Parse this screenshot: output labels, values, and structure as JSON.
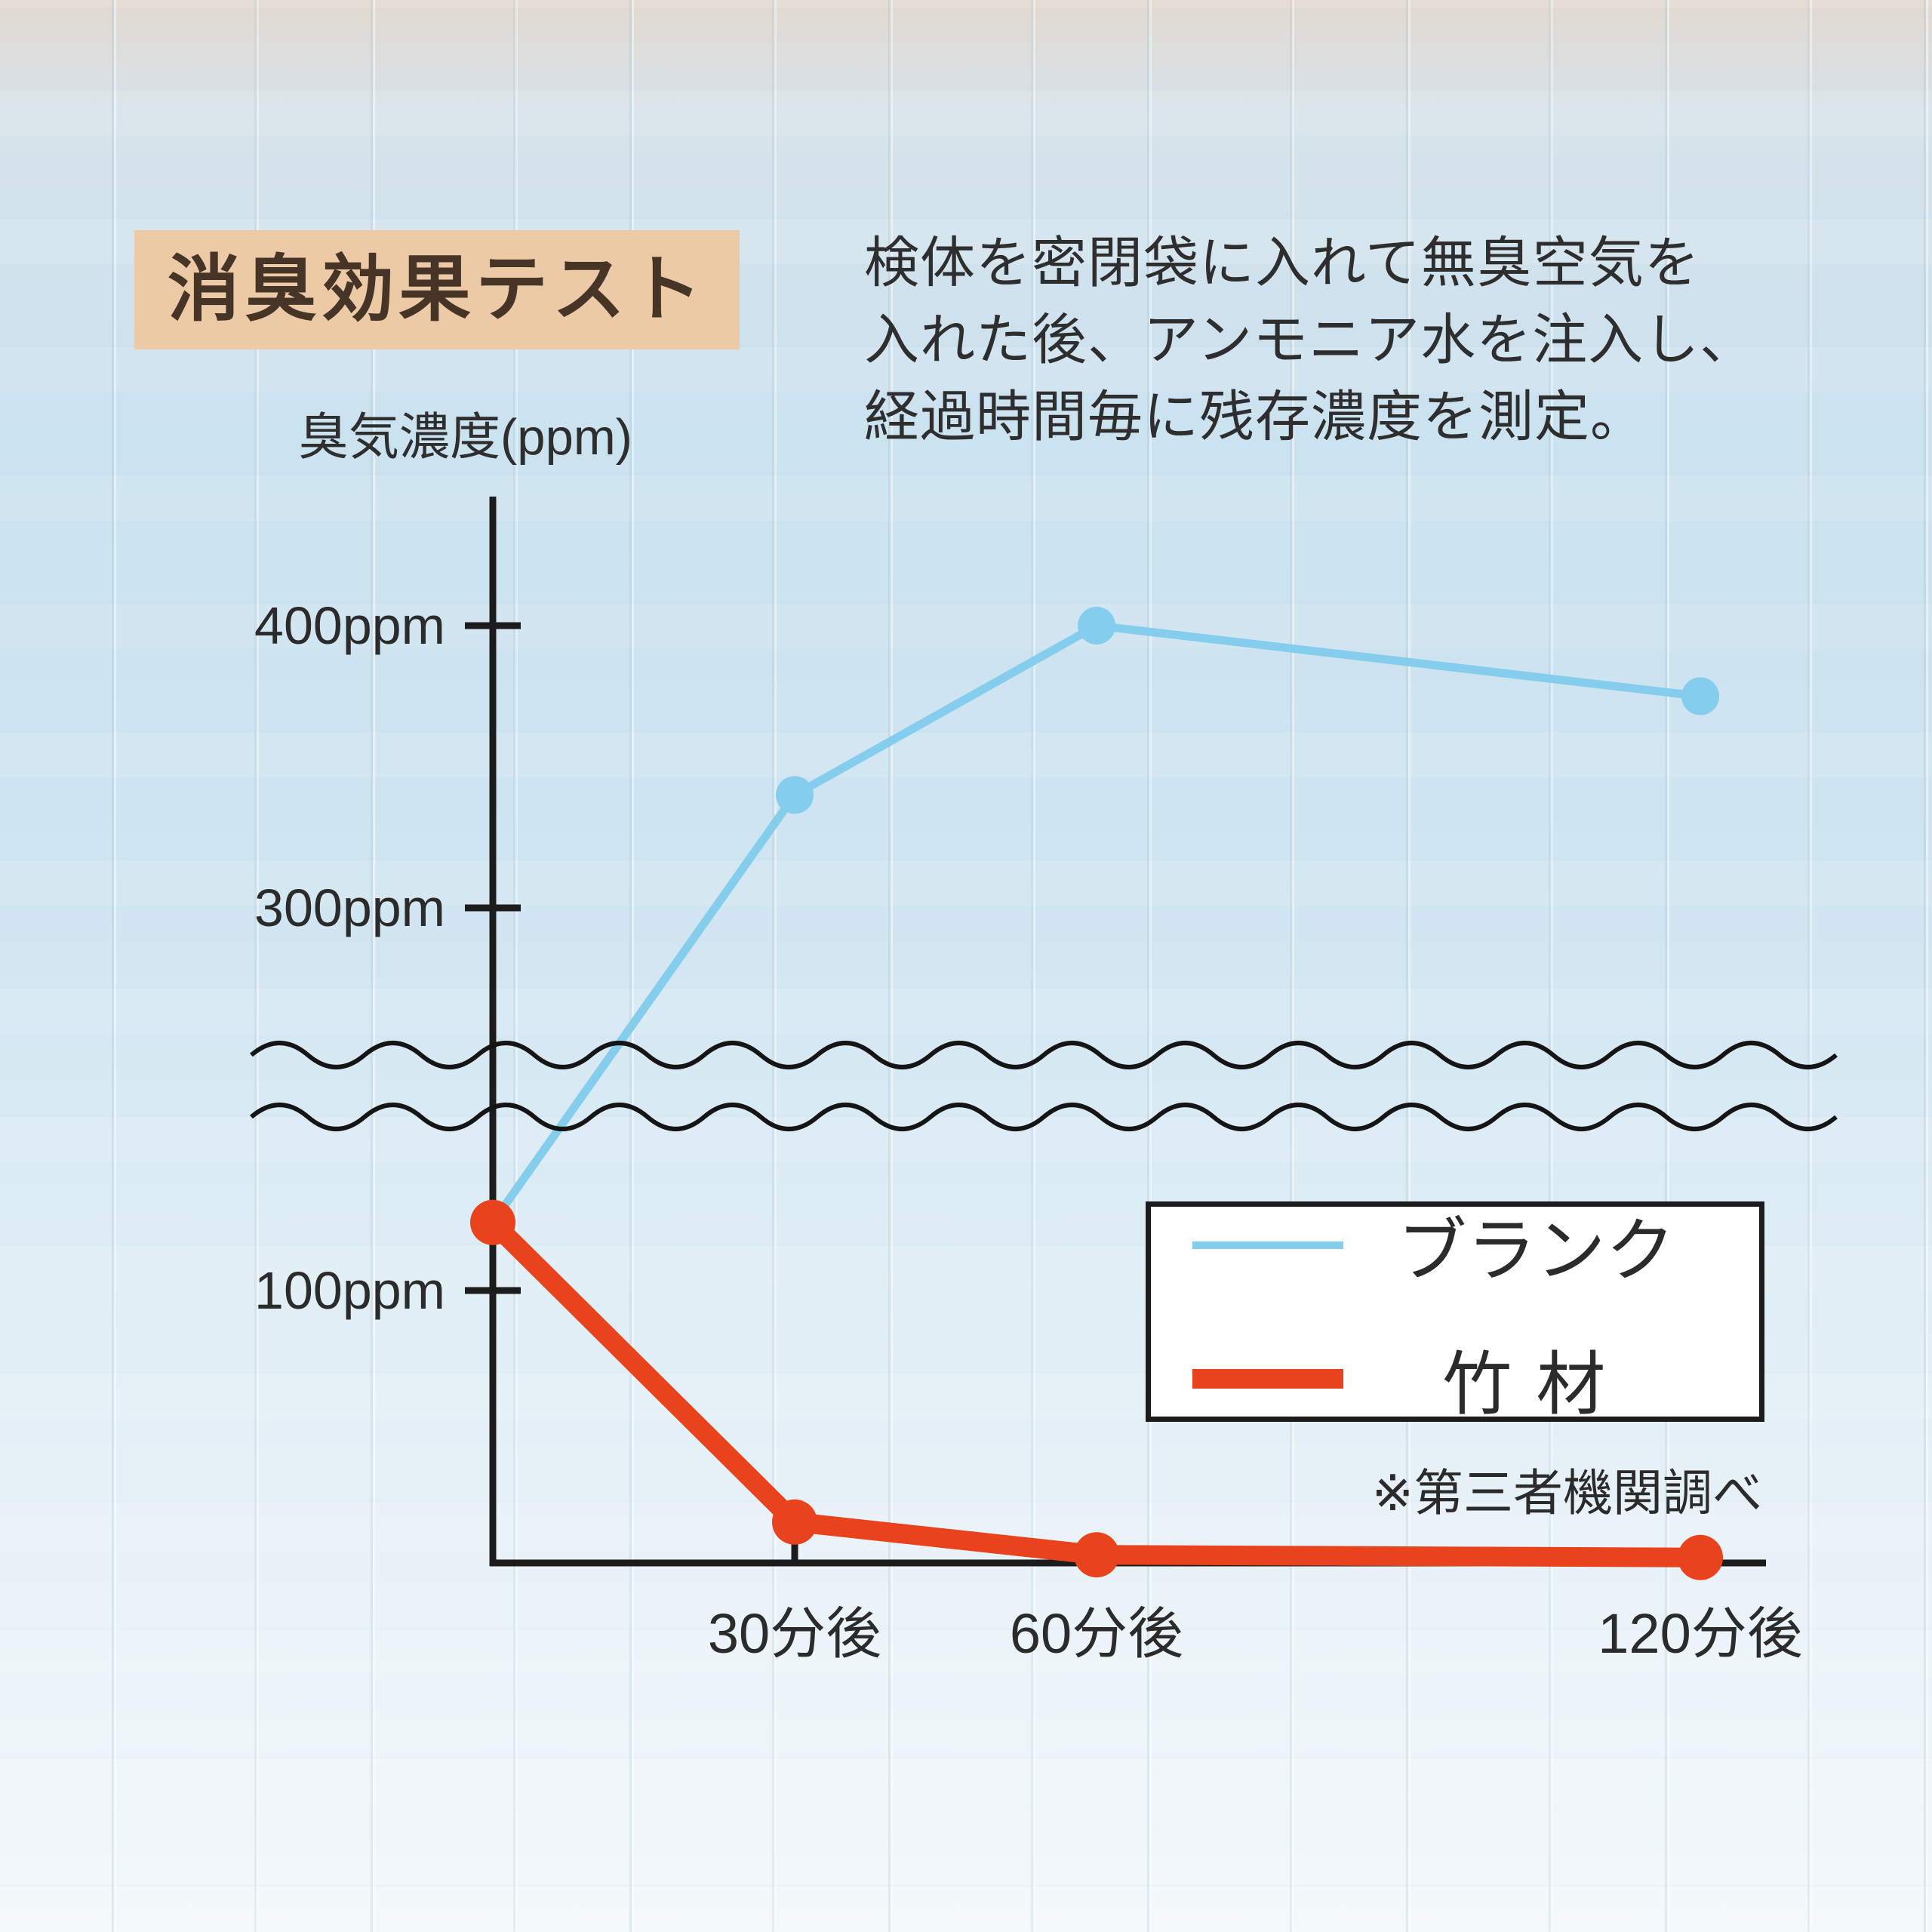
{
  "header": {
    "title": "消臭効果テスト",
    "title_bg": "#eccaa6",
    "title_color": "#463526",
    "description": "検体を密閉袋に入れて無臭空気を\n入れた後、アンモニア水を注入し、\n経過時間毎に残存濃度を測定。"
  },
  "chart_data": {
    "type": "line",
    "title": "消臭効果テスト",
    "ylabel": "臭気濃度(ppm)",
    "x_values_minutes": [
      0,
      30,
      60,
      120
    ],
    "x_tick_labels": [
      "30分後",
      "60分後",
      "120分後"
    ],
    "y_tick_values": [
      400,
      300,
      100
    ],
    "y_tick_labels": [
      "400ppm",
      "300ppm",
      "100ppm"
    ],
    "ylim": [
      0,
      430
    ],
    "grid": false,
    "axis_break_between_ppm": [
      160,
      250
    ],
    "legend_position": "lower-right",
    "note": "※第三者機関調べ",
    "series": [
      {
        "name": "ブランク",
        "color": "#85cdec",
        "values_ppm": [
          125,
          340,
          400,
          375
        ]
      },
      {
        "name": "竹材",
        "color": "#e8431c",
        "values_ppm": [
          125,
          15,
          3,
          2
        ]
      }
    ]
  }
}
